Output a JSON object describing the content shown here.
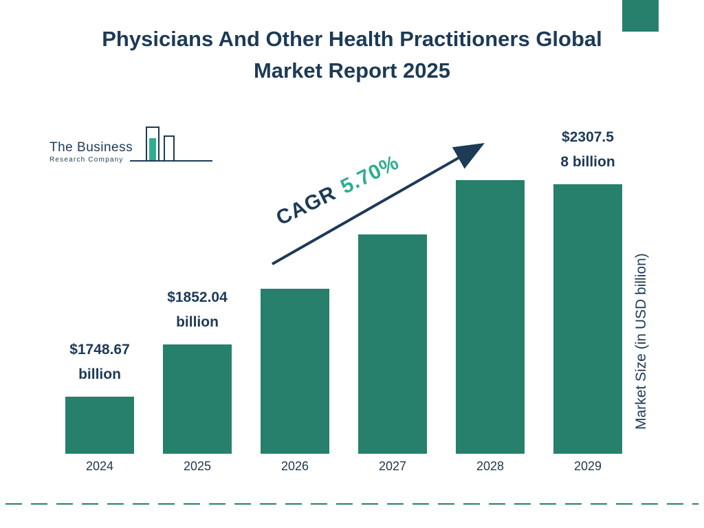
{
  "title": "Physicians And Other Health Practitioners Global Market Report 2025",
  "logo": {
    "line1": "The Business",
    "line2": "Research Company"
  },
  "cagr": {
    "label": "CAGR",
    "value": "5.70%"
  },
  "ylabel": "Market Size (in USD billion)",
  "colors": {
    "teal": "#26806b",
    "navy": "#1d3a56",
    "mint": "#2fae8f"
  },
  "chart_data": {
    "type": "bar",
    "title": "Physicians And Other Health Practitioners Global Market Report 2025",
    "categories": [
      "2024",
      "2025",
      "2026",
      "2027",
      "2028",
      "2029"
    ],
    "values": [
      1748.67,
      1852.04,
      null,
      null,
      null,
      2307.58
    ],
    "unit": "USD billion",
    "ylabel": "Market Size (in USD billion)",
    "cagr": "5.70%",
    "legend": "none",
    "grid": "off",
    "bar_labels": [
      {
        "line1": "$1748.67",
        "line2": "billion"
      },
      {
        "line1": "$1852.04",
        "line2": "billion"
      },
      null,
      null,
      null,
      {
        "line1": "$2307.5",
        "line2": "8 billion"
      }
    ],
    "bar_height_pct": [
      17.4,
      33.3,
      50.2,
      66.7,
      83.3,
      100
    ]
  }
}
